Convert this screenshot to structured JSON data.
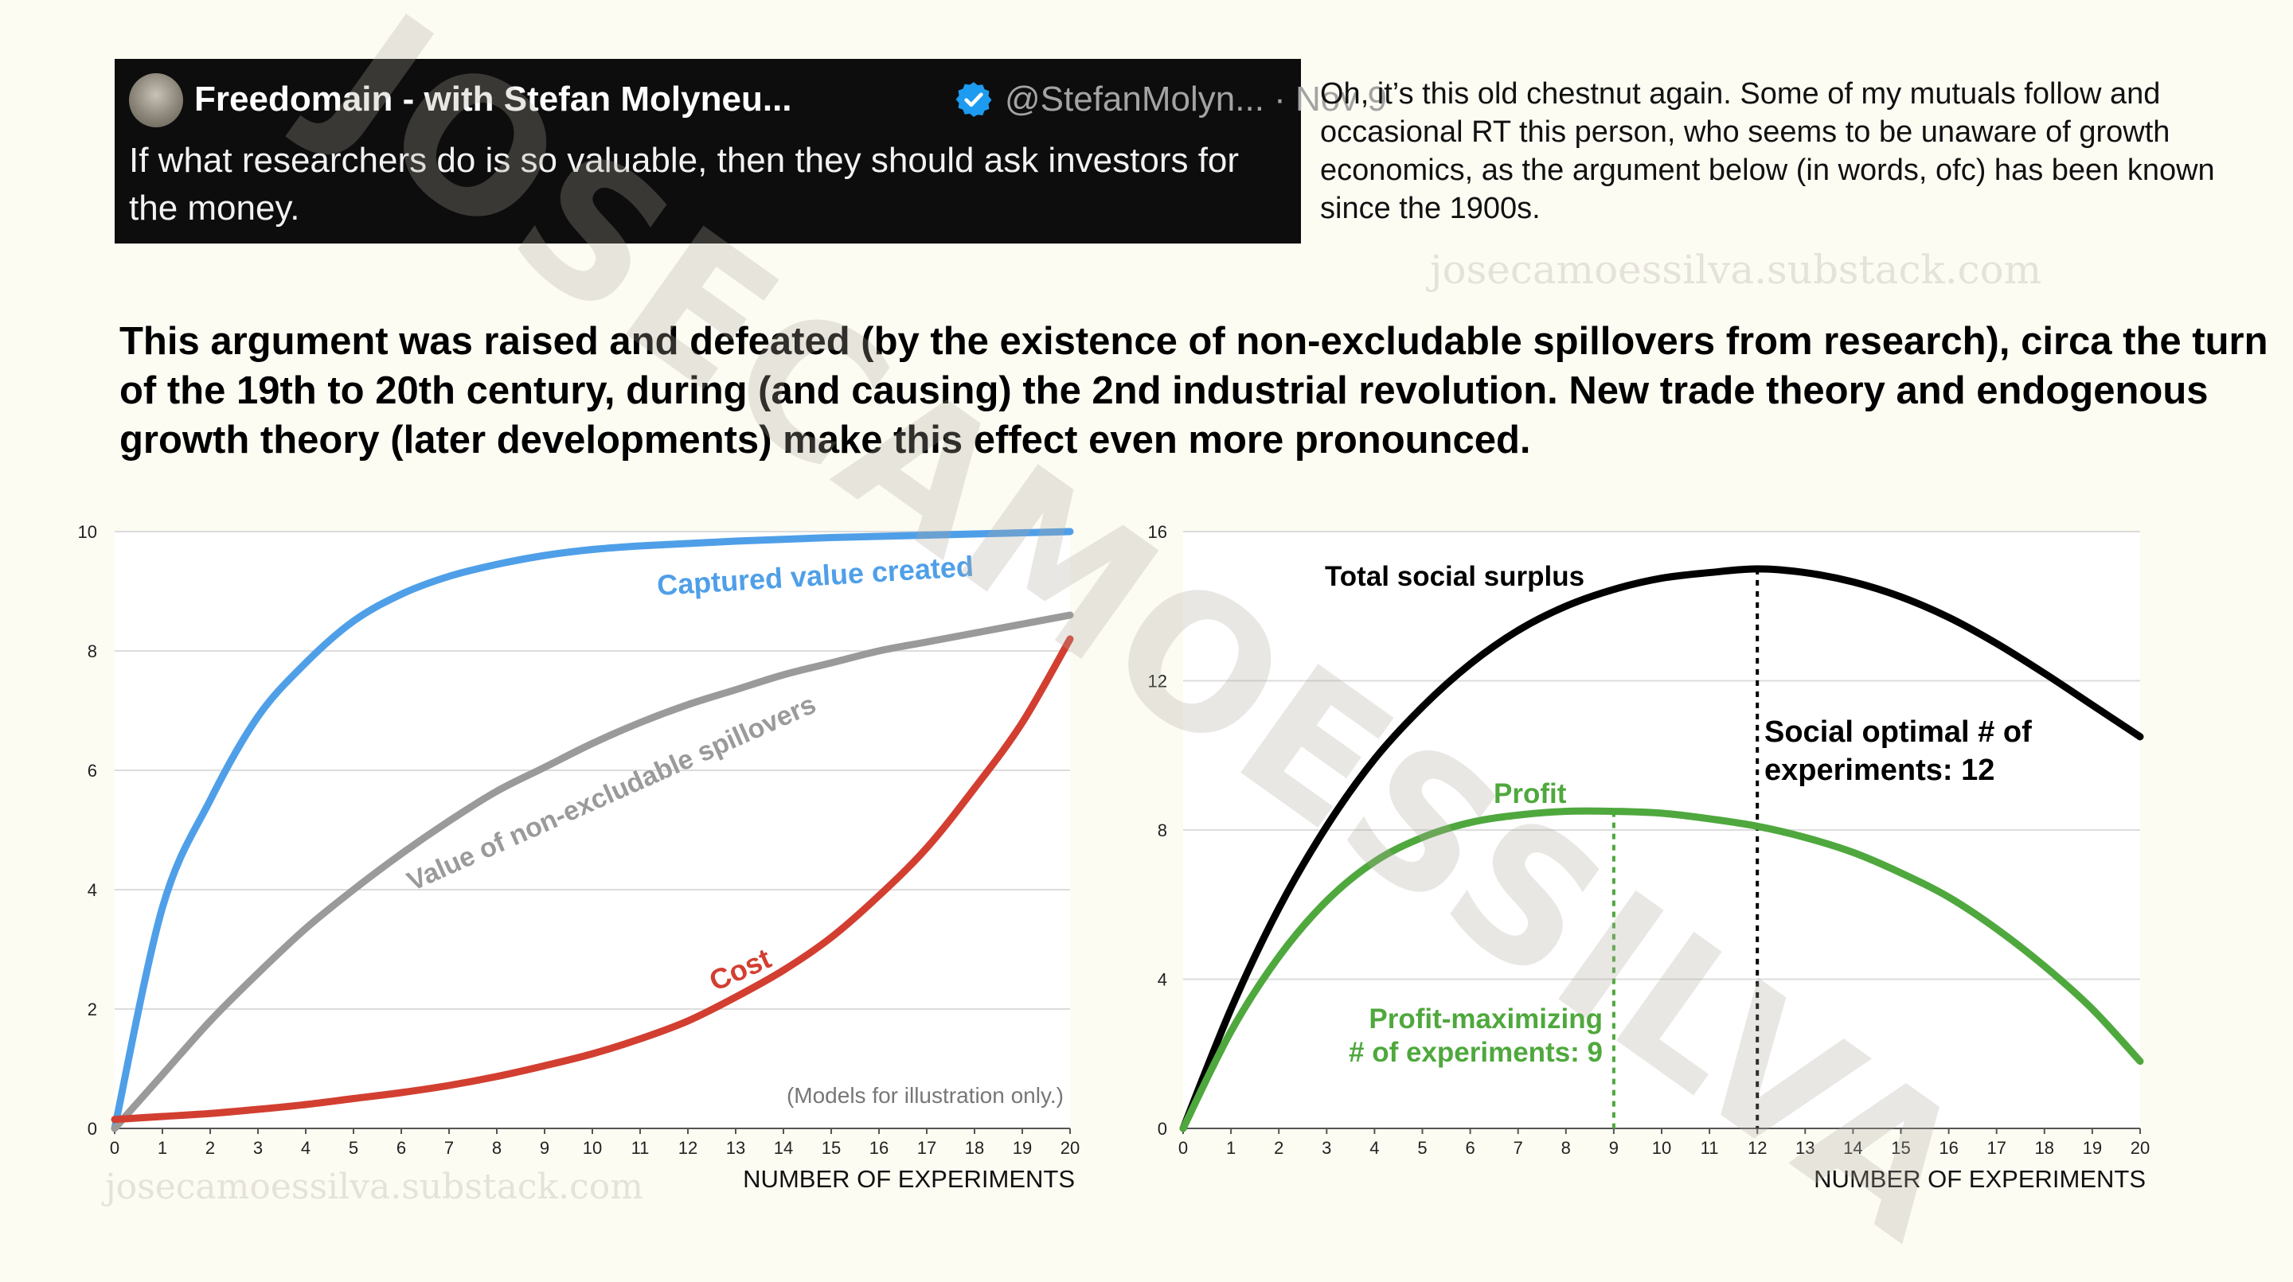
{
  "tweet": {
    "author": "Freedomain - with Stefan Molyneu...",
    "handle": "@StefanMolyn... · Nov 9",
    "text": "If what researchers do is so valuable, then they should ask investors for the money.",
    "avatar_icon": "avatar-photo",
    "verified_icon": "verified-badge-icon",
    "verified_color": "#1d9bf0"
  },
  "comment": "Oh, it’s this old chestnut again. Some of my mutuals follow and occasional RT this person, who seems to be unaware of growth economics, as the argument below (in words, ofc) has been known since the 1900s.",
  "watermarks": {
    "top": "josecamoessilva.substack.com",
    "bottom": "josecamoessilva.substack.com",
    "diagonal": "JOSECAMOESSILVA"
  },
  "headline": "This argument was raised and defeated (by the existence of non-excludable spillovers from research), circa the turn of the 19th to 20th century, during (and causing) the 2nd industrial revolution. New trade theory and endogenous growth theory (later developments) make this effect even more pronounced.",
  "chart_data": [
    {
      "type": "line",
      "title": "",
      "xlabel": "NUMBER OF EXPERIMENTS",
      "ylabel": "",
      "xlim": [
        0,
        20
      ],
      "ylim": [
        0,
        10
      ],
      "xticks": [
        0,
        1,
        2,
        3,
        4,
        5,
        6,
        7,
        8,
        9,
        10,
        11,
        12,
        13,
        14,
        15,
        16,
        17,
        18,
        19,
        20
      ],
      "yticks": [
        0,
        2,
        4,
        6,
        8,
        10
      ],
      "grid": true,
      "legend": "none",
      "note": "(Models for illustration only.)",
      "x": [
        0,
        1,
        2,
        3,
        4,
        5,
        6,
        7,
        8,
        9,
        10,
        11,
        12,
        13,
        14,
        15,
        16,
        17,
        18,
        19,
        20
      ],
      "series": [
        {
          "name": "Captured value created",
          "color": "#4f9fe8",
          "values": [
            0,
            3.7,
            5.5,
            6.9,
            7.8,
            8.5,
            8.95,
            9.25,
            9.45,
            9.6,
            9.7,
            9.76,
            9.8,
            9.84,
            9.87,
            9.9,
            9.92,
            9.94,
            9.96,
            9.98,
            10
          ]
        },
        {
          "name": "Value of non-excludable spillovers",
          "color": "#9a9a9a",
          "values": [
            0,
            0.9,
            1.8,
            2.6,
            3.35,
            4.0,
            4.6,
            5.15,
            5.65,
            6.05,
            6.45,
            6.8,
            7.1,
            7.35,
            7.6,
            7.8,
            8.0,
            8.15,
            8.3,
            8.45,
            8.6
          ]
        },
        {
          "name": "Cost",
          "color": "#d23f31",
          "values": [
            0.15,
            0.2,
            0.25,
            0.32,
            0.4,
            0.5,
            0.6,
            0.72,
            0.87,
            1.05,
            1.25,
            1.5,
            1.8,
            2.2,
            2.65,
            3.2,
            3.9,
            4.7,
            5.7,
            6.8,
            8.2
          ]
        }
      ]
    },
    {
      "type": "line",
      "title": "",
      "xlabel": "NUMBER OF EXPERIMENTS",
      "ylabel": "",
      "xlim": [
        0,
        20
      ],
      "ylim": [
        0,
        16
      ],
      "xticks": [
        0,
        1,
        2,
        3,
        4,
        5,
        6,
        7,
        8,
        9,
        10,
        11,
        12,
        13,
        14,
        15,
        16,
        17,
        18,
        19,
        20
      ],
      "yticks": [
        0,
        4,
        8,
        12,
        16
      ],
      "grid": true,
      "legend": "none",
      "x": [
        0,
        1,
        2,
        3,
        4,
        5,
        6,
        7,
        8,
        9,
        10,
        11,
        12,
        13,
        14,
        15,
        16,
        17,
        18,
        19,
        20
      ],
      "series": [
        {
          "name": "Total social surplus",
          "color": "#000000",
          "values": [
            0,
            3.2,
            5.9,
            8.1,
            9.9,
            11.3,
            12.45,
            13.35,
            14.0,
            14.45,
            14.75,
            14.9,
            15.0,
            14.9,
            14.65,
            14.25,
            13.7,
            13.0,
            12.2,
            11.35,
            10.5
          ]
        },
        {
          "name": "Profit",
          "color": "#4fa83d",
          "values": [
            0,
            2.6,
            4.6,
            6.1,
            7.15,
            7.8,
            8.2,
            8.4,
            8.5,
            8.5,
            8.45,
            8.3,
            8.1,
            7.8,
            7.4,
            6.85,
            6.2,
            5.35,
            4.35,
            3.2,
            1.8
          ]
        }
      ],
      "annotations": [
        {
          "text": "Social optimal # of experiments: 12",
          "x": 12,
          "line1": "Social optimal # of",
          "line2": "experiments: 12",
          "color": "#000000"
        },
        {
          "text": "Profit-maximizing # of experiments: 9",
          "x": 9,
          "line1": "Profit-maximizing",
          "line2": "# of experiments: 9",
          "color": "#4fa83d"
        }
      ]
    }
  ]
}
